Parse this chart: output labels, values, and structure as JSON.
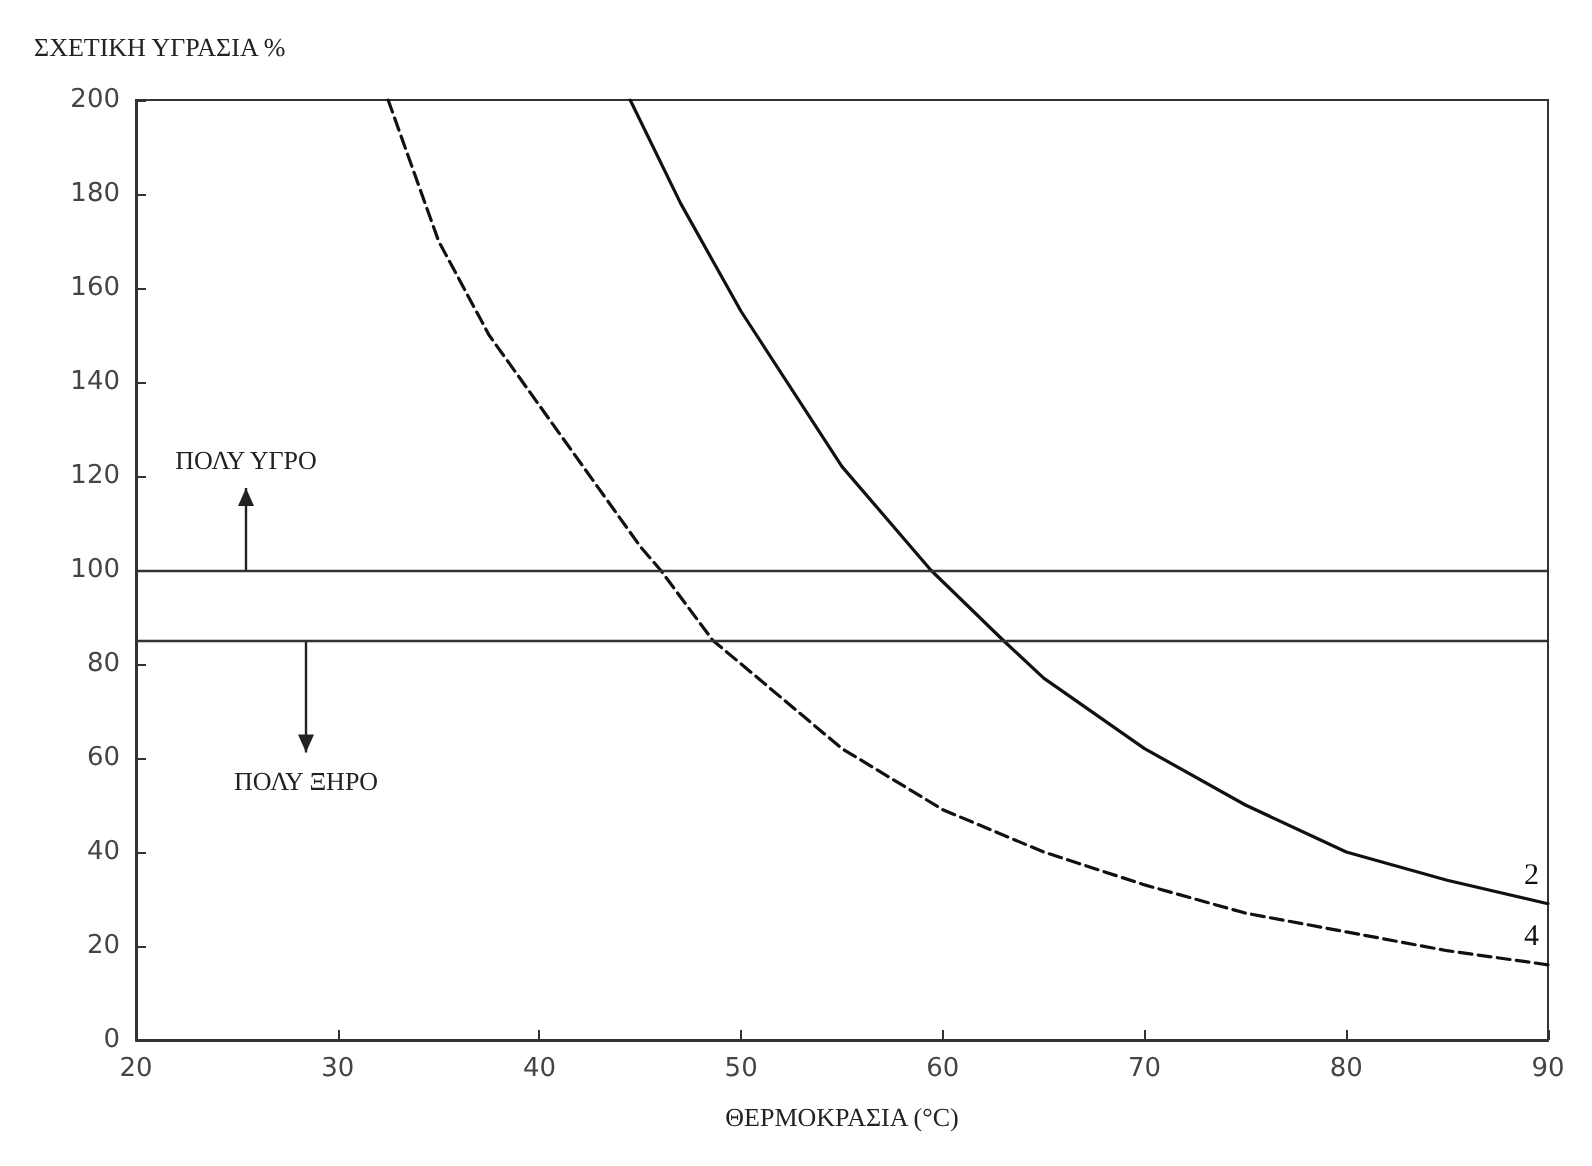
{
  "chart_data": {
    "type": "line",
    "ylabel": "ΣΧΕΤΙΚΗ ΥΓΡΑΣΙΑ %",
    "xlabel": "ΘΕΡΜΟΚΡΑΣΙΑ (°C)",
    "xlim": [
      20,
      90
    ],
    "xticks": [
      20,
      30,
      40,
      50,
      60,
      70,
      80,
      90
    ],
    "ylim": [
      0,
      200
    ],
    "yticks": [
      0,
      20,
      40,
      60,
      80,
      100,
      120,
      140,
      160,
      180,
      200
    ],
    "grid": false,
    "legend": false,
    "marker": "none",
    "series": [
      {
        "name": "2",
        "color": "#111111",
        "line_style": "solid",
        "x": [
          44.5,
          47,
          50,
          55,
          59.4,
          63,
          65,
          70,
          75,
          80,
          85,
          90
        ],
        "values": [
          200,
          178,
          155,
          122,
          100,
          85,
          77,
          62,
          50,
          40,
          34,
          29
        ]
      },
      {
        "name": "4",
        "color": "#111111",
        "line_style": "dashed",
        "x": [
          32.5,
          35,
          37.5,
          40,
          45,
          46,
          48.6,
          50,
          55,
          60,
          65,
          70,
          75,
          80,
          85,
          90
        ],
        "values": [
          200,
          170,
          150,
          135,
          105,
          100,
          85,
          80,
          62,
          49,
          40,
          33,
          27,
          23,
          19,
          16
        ]
      }
    ],
    "ref_lines": [
      {
        "axis": "y",
        "value": 100,
        "color": "#333333",
        "line_style": "solid"
      },
      {
        "axis": "y",
        "value": 85,
        "color": "#333333",
        "line_style": "solid"
      }
    ],
    "annotations": [
      "ΠΟΛΥ ΥΓΡΟ",
      "ΠΟΛΥ ΞΗΡΟ"
    ]
  }
}
